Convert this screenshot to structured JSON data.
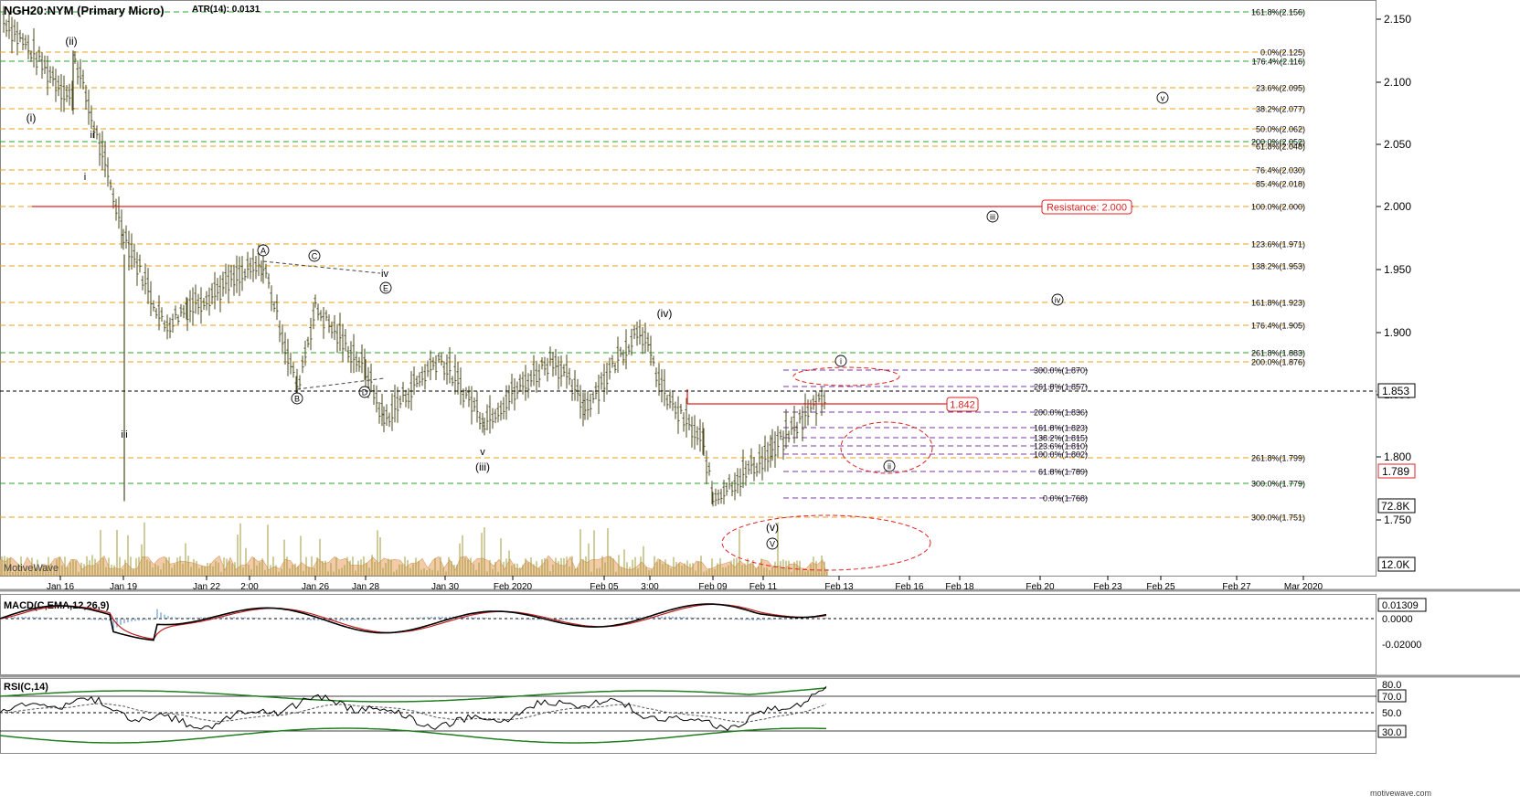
{
  "header": {
    "symbol": "NGH20:NYM (Primary Micro)",
    "atr": "ATR(14): 0.0131"
  },
  "brand": {
    "watermark": "MotiveWave",
    "footer": "motivewave.com"
  },
  "colors": {
    "fib_orange": "#e8a21e",
    "fib_green": "#2aa52a",
    "fib_purple": "#7b3aa8",
    "resistance_red": "#e02020",
    "bar": "#4a4a1e",
    "volume_bar": "#a09a3a",
    "volume_area": "#f3c39a",
    "macd_line": "#000000",
    "macd_signal": "#c02020",
    "macd_hist": "#6a9ad0",
    "rsi_band": "#208020"
  },
  "price_axis": {
    "ticks": [
      "2.150",
      "2.100",
      "2.050",
      "2.000",
      "1.950",
      "1.900",
      "1.850",
      "1.800",
      "1.750"
    ],
    "last_price": "1.853",
    "marker_price": "1.789",
    "volume_top": "72.8K",
    "volume_bottom": "12.0K"
  },
  "date_axis": {
    "ticks": [
      "Jan 16",
      "Jan 19",
      "Jan 22",
      "2:00",
      "Jan 26",
      "Jan 28",
      "Jan 30",
      "Feb 2020",
      "Feb 05",
      "3:00",
      "Feb 09",
      "Feb 11",
      "Feb 13",
      "Feb 16",
      "Feb 18",
      "Feb 20",
      "Feb 23",
      "Feb 25",
      "Feb 27",
      "Mar 2020"
    ]
  },
  "fib_levels": [
    "161.8%(2.156)",
    "0.0%(2.125)",
    "176.4%(2.116)",
    "23.6%(2.095)",
    "38.2%(2.077)",
    "50.0%(2.062)",
    "200.0%(2.052)",
    "61.8%(2.048)",
    "76.4%(2.030)",
    "85.4%(2.018)",
    "100.0%(2.000)",
    "123.6%(1.971)",
    "138.2%(1.953)",
    "161.8%(1.923)",
    "176.4%(1.905)",
    "261.8%(1.883)",
    "200.0%(1.876)",
    "300.0%(1.870)",
    "261.8%(1.857)",
    "200.0%(1.836)",
    "161.8%(1.823)",
    "138.2%(1.815)",
    "123.6%(1.810)",
    "100.0%(1.802)",
    "261.8%(1.799)",
    "61.8%(1.789)",
    "300.0%(1.779)",
    "0.0%(1.768)",
    "300.0%(1.751)"
  ],
  "resistance": {
    "label": "Resistance: 2.000"
  },
  "price_box": {
    "label": "1.842"
  },
  "wave_labels": {
    "w_i": "(i)",
    "w_ii": "(ii)",
    "w_i_small": "i",
    "w_ii_small": "ii",
    "w_iii_small": "iii",
    "w_A": "A",
    "w_B": "B",
    "w_C": "C",
    "w_D": "D",
    "w_E": "E",
    "w_iv_small": "iv",
    "w_v_small": "v",
    "w_iii": "(iii)",
    "w_iv": "(iv)",
    "w_v": "(v)",
    "w_V": "V",
    "w_I_c": "i",
    "w_II_c": "ii",
    "w_III_c": "iii",
    "w_IV_c": "iv",
    "w_V_c": "v"
  },
  "macd": {
    "title": "MACD(C,EMA,12,26,9)",
    "ticks": [
      "0.01309",
      "0.0000",
      "-0.02000"
    ]
  },
  "rsi": {
    "title": "RSI(C,14)",
    "ticks": [
      "80.0",
      "70.0",
      "50.0",
      "30.0"
    ]
  },
  "chart_data": {
    "type": "line",
    "title": "NGH20:NYM (Primary Micro)",
    "xlabel": "",
    "ylabel": "",
    "ylim": [
      1.72,
      2.17
    ],
    "x": [
      "Jan 15",
      "Jan 16",
      "Jan 17",
      "Jan 19",
      "Jan 21",
      "Jan 23",
      "Jan 24",
      "Jan 27",
      "Jan 28",
      "Jan 29",
      "Jan 31",
      "Feb 02",
      "Feb 04",
      "Feb 05",
      "Feb 06",
      "Feb 07",
      "Feb 08",
      "Feb 09",
      "Feb 10",
      "Feb 11",
      "Feb 12"
    ],
    "series": [
      {
        "values": [
          2.15,
          2.085,
          2.12,
          1.98,
          1.905,
          1.92,
          1.955,
          1.855,
          1.92,
          1.87,
          1.83,
          1.88,
          1.83,
          1.88,
          1.84,
          1.905,
          1.85,
          1.81,
          1.768,
          1.805,
          1.853
        ]
      }
    ],
    "grid": false,
    "legend": "none"
  }
}
